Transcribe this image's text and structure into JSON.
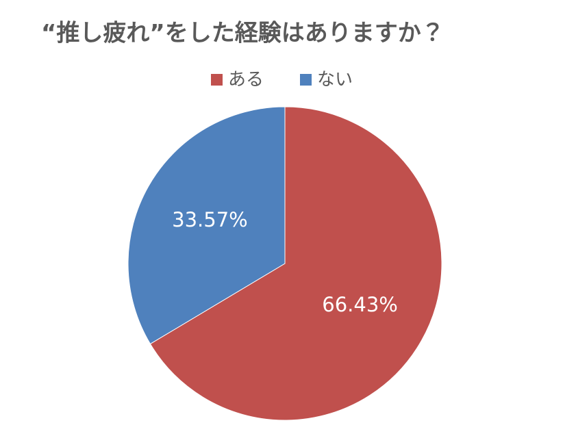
{
  "chart_data": {
    "type": "pie",
    "title": "“推し疲れ”をした経験はありますか？",
    "categories": [
      "ある",
      "ない"
    ],
    "values": [
      66.43,
      33.57
    ],
    "value_labels": [
      "66.43%",
      "33.57%"
    ],
    "colors": [
      "#c0504d",
      "#4f81bd"
    ]
  }
}
